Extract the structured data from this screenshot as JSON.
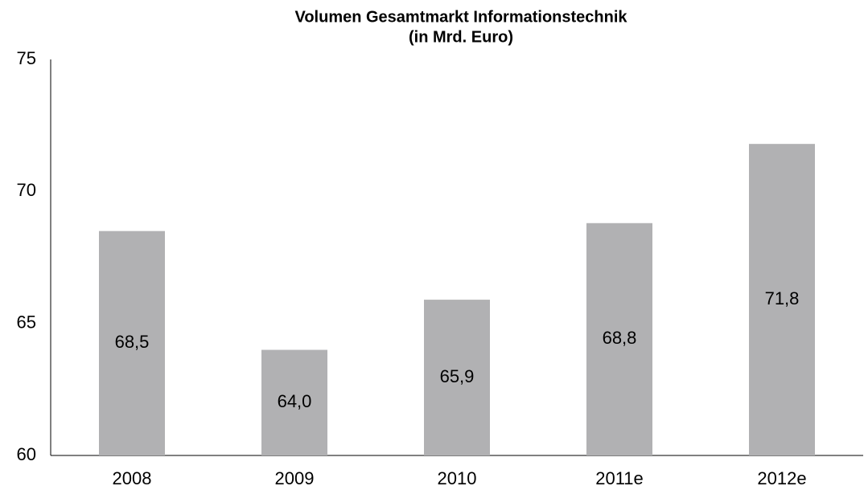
{
  "chart_data": {
    "type": "bar",
    "title": [
      "Volumen Gesamtmarkt Informationstechnik",
      "(in Mrd. Euro)"
    ],
    "categories": [
      "2008",
      "2009",
      "2010",
      "2011e",
      "2012e"
    ],
    "values": [
      68.5,
      64.0,
      65.9,
      68.8,
      71.8
    ],
    "value_labels": [
      "68,5",
      "64,0",
      "65,9",
      "68,8",
      "71,8"
    ],
    "color": "#b1b1b3",
    "ylim": [
      60,
      75
    ],
    "yticks": [
      60,
      65,
      70,
      75
    ],
    "grid": false
  }
}
